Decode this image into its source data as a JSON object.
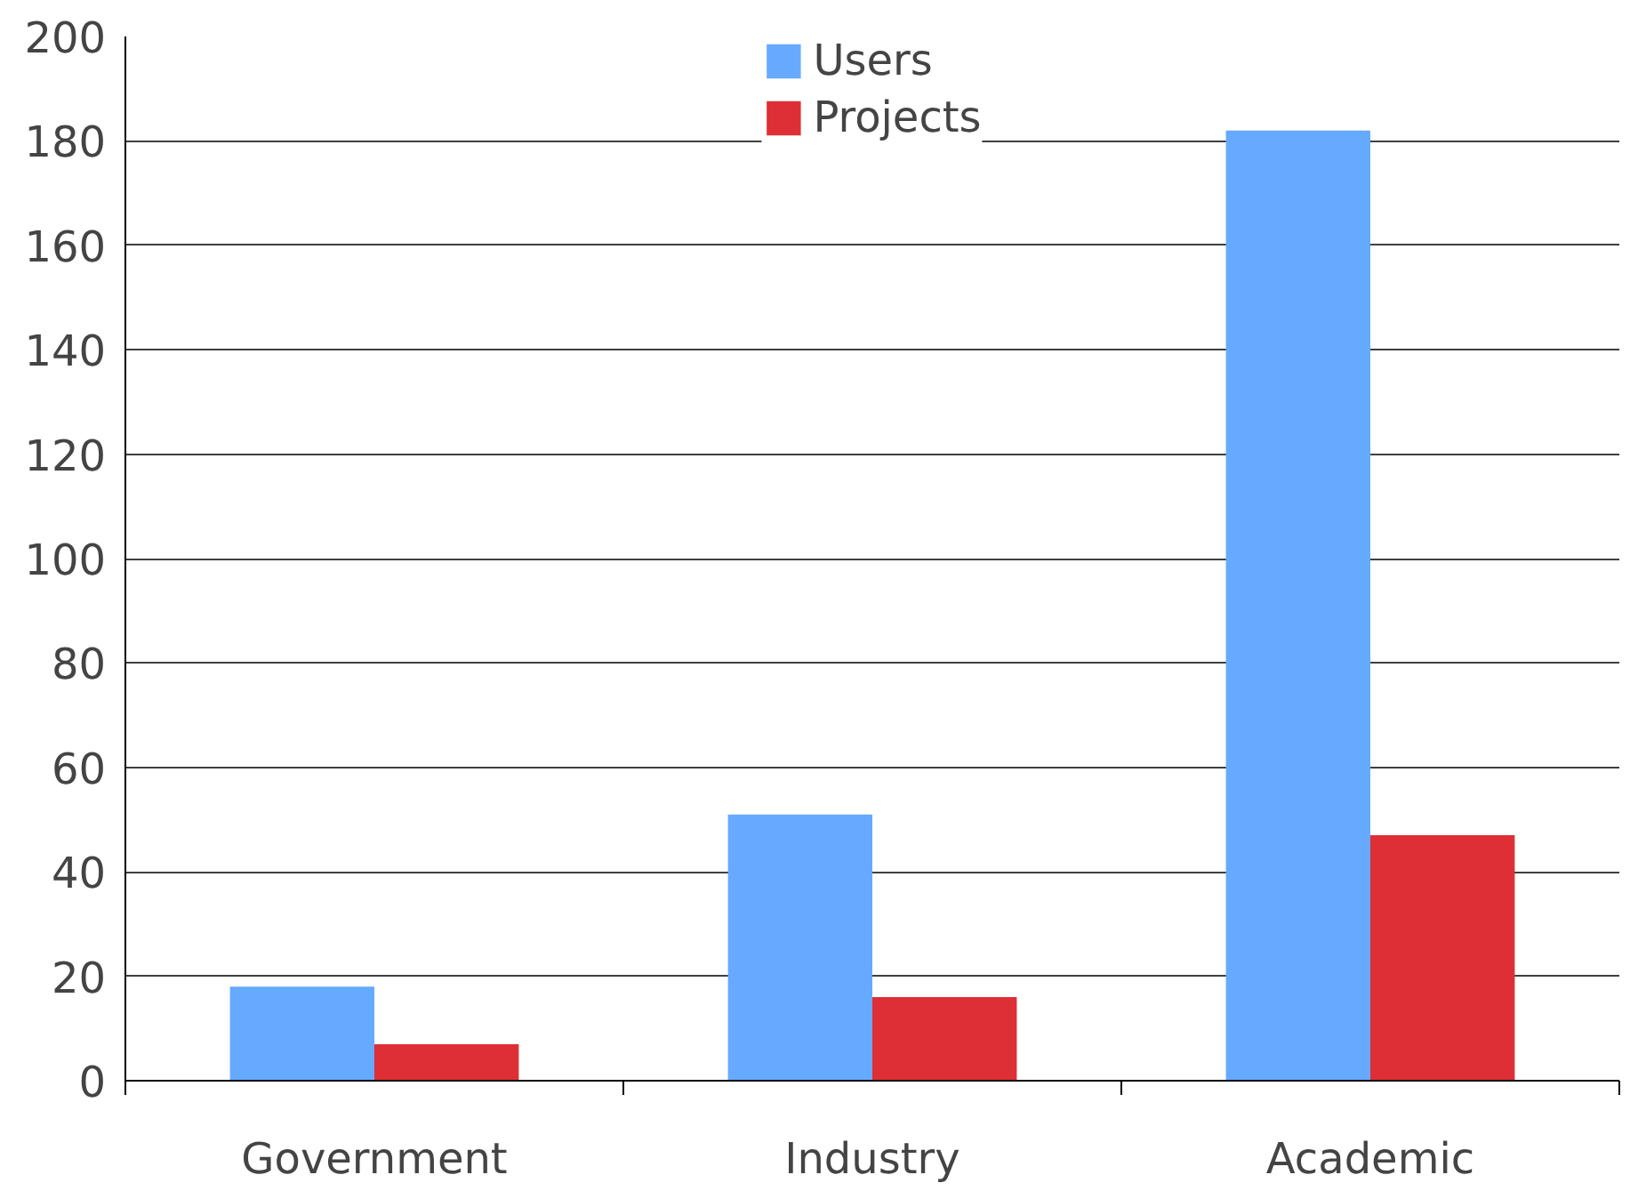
{
  "chart_data": {
    "type": "bar",
    "categories": [
      "Government",
      "Industry",
      "Academic"
    ],
    "series": [
      {
        "name": "Users",
        "color": "#66aaff",
        "values": [
          18,
          51,
          182
        ]
      },
      {
        "name": "Projects",
        "color": "#dd2f35",
        "values": [
          7,
          16,
          47
        ]
      }
    ],
    "ylim": [
      0,
      200
    ],
    "yticks": [
      0,
      20,
      40,
      60,
      80,
      100,
      120,
      140,
      160,
      180,
      200
    ],
    "grid": "y",
    "legend": "top"
  }
}
